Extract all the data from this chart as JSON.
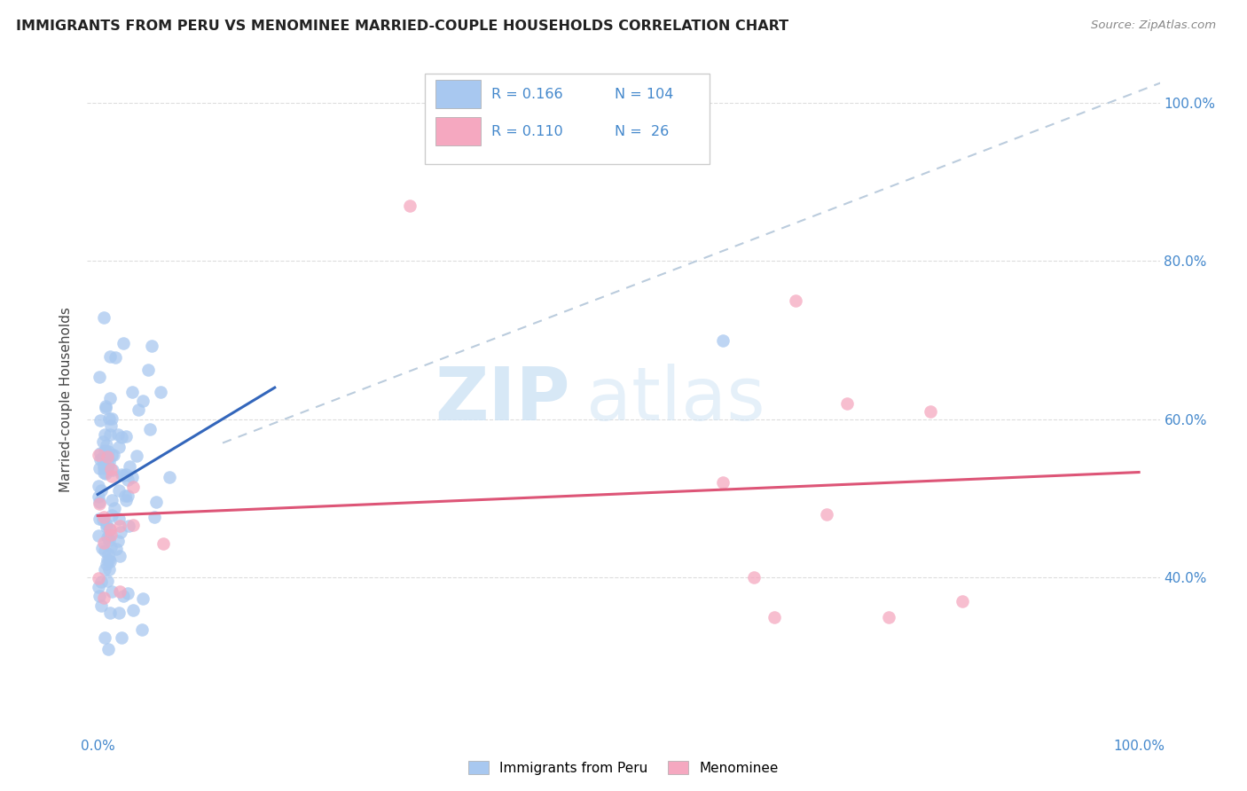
{
  "title": "IMMIGRANTS FROM PERU VS MENOMINEE MARRIED-COUPLE HOUSEHOLDS CORRELATION CHART",
  "source": "Source: ZipAtlas.com",
  "ylabel": "Married-couple Households",
  "blue_color": "#A8C8F0",
  "pink_color": "#F5A8C0",
  "blue_line_color": "#3366BB",
  "pink_line_color": "#DD5577",
  "dashed_line_color": "#BBCCDD",
  "R_blue": 0.166,
  "N_blue": 104,
  "R_pink": 0.11,
  "N_pink": 26,
  "legend_label_blue": "Immigrants from Peru",
  "legend_label_pink": "Menominee",
  "tick_color": "#4488CC",
  "title_color": "#222222",
  "source_color": "#888888",
  "watermark_color": "#D0E4F5",
  "grid_color": "#DDDDDD",
  "xlim": [
    -0.01,
    1.02
  ],
  "ylim": [
    0.2,
    1.05
  ],
  "yticks": [
    0.4,
    0.6,
    0.8,
    1.0
  ],
  "yticklabels": [
    "40.0%",
    "60.0%",
    "80.0%",
    "100.0%"
  ],
  "xticks": [
    0.0,
    0.2,
    0.4,
    0.6,
    0.8,
    1.0
  ],
  "xticklabels": [
    "0.0%",
    "",
    "",
    "",
    "",
    "100.0%"
  ]
}
